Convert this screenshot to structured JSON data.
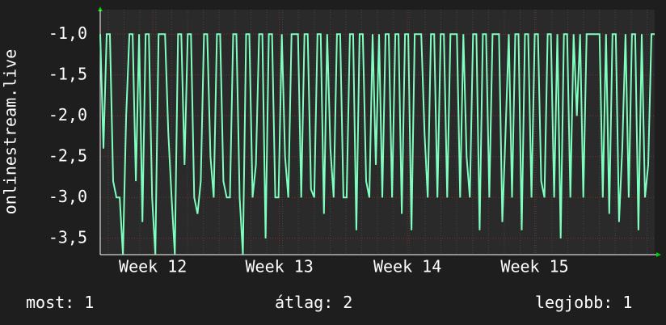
{
  "chart_data": {
    "type": "line",
    "y_label": "onlinestream.live",
    "color": "#7fffbf",
    "values": [
      -1,
      -2.4,
      -1,
      -1,
      -2.8,
      -3,
      -3,
      -3.7,
      -2,
      -1,
      -1,
      -2.8,
      -1,
      -3.3,
      -1,
      -1,
      -3,
      -3.7,
      -1,
      -1,
      -1,
      -2.2,
      -3,
      -3.7,
      -1,
      -1,
      -2.6,
      -1,
      -1,
      -3,
      -3.2,
      -2.8,
      -1,
      -1,
      -2.5,
      -3,
      -1,
      -1,
      -2.8,
      -3,
      -3,
      -1,
      -1,
      -3,
      -3.7,
      -1,
      -1,
      -3,
      -2.6,
      -1,
      -1,
      -3.5,
      -1,
      -1,
      -3,
      -3,
      -1,
      -2.5,
      -3,
      -1,
      -1,
      -1,
      -3,
      -1,
      -1,
      -2.9,
      -3,
      -1,
      -1,
      -3.2,
      -1,
      -2.4,
      -3,
      -1,
      -1,
      -3,
      -3,
      -1,
      -1,
      -3.4,
      -1,
      -1,
      -2.8,
      -3,
      -1,
      -2.6,
      -1,
      -3,
      -1,
      -1,
      -3,
      -1,
      -1,
      -3.2,
      -1,
      -1,
      -3.4,
      -1,
      -1,
      -1,
      -2.2,
      -3,
      -1,
      -1,
      -3,
      -1,
      -1,
      -3,
      -1,
      -1,
      -1,
      -3,
      -1,
      -2.5,
      -3,
      -1,
      -1,
      -3.4,
      -1,
      -1,
      -3,
      -1,
      -1,
      -1,
      -3.3,
      -2.2,
      -1,
      -3,
      -1,
      -1,
      -3.4,
      -1,
      -1,
      -3,
      -1,
      -1,
      -2.8,
      -3,
      -1,
      -1,
      -3,
      -1,
      -3.5,
      -1,
      -1,
      -3,
      -1,
      -2,
      -1,
      -3,
      -1,
      -1,
      -1,
      -1,
      -1,
      -3,
      -1,
      -3.2,
      -1,
      -1,
      -3.3,
      -2.4,
      -1,
      -3,
      -1,
      -1,
      -3.4,
      -1,
      -3,
      -2.6,
      -1,
      -1
    ],
    "xlim": [
      0,
      171
    ],
    "xticks": [
      {
        "value": 16.25,
        "label": "Week 12"
      },
      {
        "value": 55.25,
        "label": "Week 13"
      },
      {
        "value": 94.75,
        "label": "Week 14"
      },
      {
        "value": 134,
        "label": "Week 15"
      }
    ],
    "ylim": [
      -3.7,
      -0.7
    ],
    "yticks": [
      {
        "value": -1,
        "label": "-1,0"
      },
      {
        "value": -1.5,
        "label": "-1,5"
      },
      {
        "value": -2,
        "label": "-2,0"
      },
      {
        "value": -2.5,
        "label": "-2,5"
      },
      {
        "value": -3,
        "label": "-3,0"
      },
      {
        "value": -3.5,
        "label": "-3,5"
      }
    ],
    "grid": true,
    "stats": [
      {
        "label": "most:",
        "value": 1
      },
      {
        "label": "átlag:",
        "value": 2
      },
      {
        "label": "legjobb:",
        "value": 1
      }
    ]
  }
}
